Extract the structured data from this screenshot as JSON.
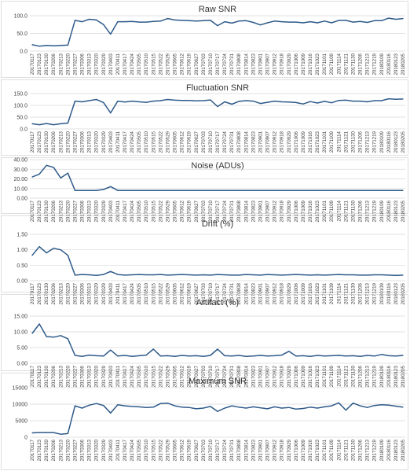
{
  "page": {
    "line_color": "#2e5a8a"
  },
  "chart_data": [
    {
      "type": "line",
      "title": "Raw SNR",
      "ylim": [
        0,
        100
      ],
      "yticks": [
        "0.0",
        "50.0",
        "100.0"
      ],
      "grid": true,
      "x": [
        "20170117",
        "20170123",
        "20170130",
        "20170206",
        "20170213",
        "20170220",
        "20170227",
        "20170306",
        "20170313",
        "20170320",
        "20170329",
        "20170403",
        "20170411",
        "20170417",
        "20170424",
        "20170505",
        "20170510",
        "20170515",
        "20170522",
        "20170529",
        "20170605",
        "20170612",
        "20170619",
        "20170627",
        "20170703",
        "20170710",
        "20170717",
        "20170724",
        "20170731",
        "20170808",
        "20170814",
        "20170823",
        "20170901",
        "20170907",
        "20170912",
        "20170918",
        "20170929",
        "20171006",
        "20171009",
        "20171016",
        "20171023",
        "20171101",
        "20171109",
        "20171114",
        "20171121",
        "20171130",
        "20171206",
        "20171213",
        "20171219",
        "20180109",
        "20180116",
        "20180123",
        "20180205"
      ],
      "values": [
        18,
        14,
        16,
        15,
        16,
        17,
        87,
        83,
        90,
        88,
        75,
        48,
        83,
        83,
        84,
        82,
        82,
        84,
        85,
        92,
        88,
        87,
        86,
        85,
        86,
        87,
        72,
        83,
        79,
        85,
        86,
        81,
        74,
        80,
        85,
        83,
        82,
        82,
        80,
        83,
        80,
        85,
        80,
        87,
        87,
        82,
        84,
        81,
        86,
        86,
        93,
        90,
        92
      ]
    },
    {
      "type": "line",
      "title": "Fluctuation SNR",
      "ylim": [
        0,
        150
      ],
      "yticks": [
        "0.0",
        "50.0",
        "100.0",
        "150.0"
      ],
      "grid": true,
      "x": [
        "20170117",
        "20170123",
        "20170130",
        "20170206",
        "20170213",
        "20170220",
        "20170227",
        "20170306",
        "20170313",
        "20170320",
        "20170329",
        "20170403",
        "20170411",
        "20170417",
        "20170424",
        "20170505",
        "20170510",
        "20170515",
        "20170522",
        "20170529",
        "20170605",
        "20170612",
        "20170619",
        "20170627",
        "20170703",
        "20170710",
        "20170717",
        "20170724",
        "20170731",
        "20170808",
        "20170814",
        "20170823",
        "20170901",
        "20170907",
        "20170912",
        "20170918",
        "20170929",
        "20171006",
        "20171009",
        "20171016",
        "20171023",
        "20171101",
        "20171109",
        "20171114",
        "20171121",
        "20171130",
        "20171206",
        "20171213",
        "20171219",
        "20180109",
        "20180116",
        "20180123",
        "20180205"
      ],
      "values": [
        22,
        18,
        23,
        18,
        22,
        25,
        118,
        115,
        120,
        125,
        112,
        68,
        118,
        114,
        118,
        115,
        113,
        118,
        120,
        125,
        122,
        121,
        121,
        119,
        120,
        123,
        95,
        115,
        105,
        117,
        120,
        118,
        108,
        113,
        118,
        115,
        114,
        112,
        106,
        116,
        110,
        117,
        111,
        121,
        122,
        118,
        118,
        115,
        120,
        120,
        128,
        126,
        127
      ]
    },
    {
      "type": "line",
      "title": "Noise (ADUs)",
      "ylim": [
        0,
        40
      ],
      "yticks": [
        "0.00",
        "10.00",
        "20.00",
        "30.00",
        "40.00"
      ],
      "grid": true,
      "x": [
        "20170117",
        "20170123",
        "20170130",
        "20170206",
        "20170213",
        "20170220",
        "20170227",
        "20170306",
        "20170313",
        "20170320",
        "20170329",
        "20170403",
        "20170411",
        "20170417",
        "20170424",
        "20170505",
        "20170510",
        "20170515",
        "20170522",
        "20170529",
        "20170605",
        "20170612",
        "20170619",
        "20170627",
        "20170703",
        "20170710",
        "20170717",
        "20170724",
        "20170731",
        "20170808",
        "20170814",
        "20170823",
        "20170901",
        "20170907",
        "20170912",
        "20170918",
        "20170929",
        "20171006",
        "20171009",
        "20171016",
        "20171023",
        "20171101",
        "20171109",
        "20171114",
        "20171121",
        "20171130",
        "20171206",
        "20171213",
        "20171219",
        "20180109",
        "20180116",
        "20180123",
        "20180205"
      ],
      "values": [
        22,
        25,
        34,
        32,
        21,
        26,
        8,
        8,
        8,
        8,
        9,
        12,
        8,
        8,
        8,
        8,
        8,
        8,
        8,
        8,
        8,
        8,
        8,
        8,
        8,
        8,
        8,
        8,
        8,
        8,
        8,
        8,
        8,
        8,
        8,
        8,
        8,
        8,
        8,
        8,
        8,
        8,
        8,
        8,
        8,
        8,
        8,
        8,
        8,
        8,
        8,
        8,
        8
      ]
    },
    {
      "type": "line",
      "title": "Drift (%)",
      "ylim": [
        0,
        1.5
      ],
      "yticks": [
        "0.00",
        "0.50",
        "1.00",
        "1.50"
      ],
      "grid": true,
      "x": [
        "20170117",
        "20170123",
        "20170130",
        "20170206",
        "20170213",
        "20170220",
        "20170227",
        "20170306",
        "20170313",
        "20170320",
        "20170329",
        "20170403",
        "20170411",
        "20170417",
        "20170424",
        "20170505",
        "20170510",
        "20170515",
        "20170522",
        "20170529",
        "20170605",
        "20170612",
        "20170619",
        "20170627",
        "20170703",
        "20170710",
        "20170717",
        "20170724",
        "20170731",
        "20170808",
        "20170814",
        "20170823",
        "20170901",
        "20170907",
        "20170912",
        "20170918",
        "20170929",
        "20171006",
        "20171009",
        "20171016",
        "20171023",
        "20171101",
        "20171109",
        "20171114",
        "20171121",
        "20171130",
        "20171206",
        "20171213",
        "20171219",
        "20180109",
        "20180116",
        "20180123",
        "20180205"
      ],
      "values": [
        0.82,
        1.1,
        0.9,
        1.05,
        1.0,
        0.82,
        0.18,
        0.2,
        0.19,
        0.17,
        0.2,
        0.3,
        0.2,
        0.18,
        0.19,
        0.2,
        0.19,
        0.19,
        0.2,
        0.18,
        0.19,
        0.2,
        0.19,
        0.18,
        0.19,
        0.18,
        0.2,
        0.19,
        0.18,
        0.18,
        0.2,
        0.19,
        0.18,
        0.2,
        0.19,
        0.18,
        0.19,
        0.2,
        0.19,
        0.18,
        0.19,
        0.18,
        0.19,
        0.2,
        0.19,
        0.19,
        0.18,
        0.18,
        0.19,
        0.19,
        0.18,
        0.17,
        0.18
      ]
    },
    {
      "type": "line",
      "title": "Artifact (%)",
      "ylim": [
        0,
        15
      ],
      "yticks": [
        "0.00",
        "5.00",
        "10.00",
        "15.00"
      ],
      "grid": true,
      "x": [
        "20170117",
        "20170123",
        "20170130",
        "20170206",
        "20170213",
        "20170220",
        "20170227",
        "20170306",
        "20170313",
        "20170320",
        "20170329",
        "20170403",
        "20170411",
        "20170417",
        "20170424",
        "20170505",
        "20170510",
        "20170515",
        "20170522",
        "20170529",
        "20170605",
        "20170612",
        "20170619",
        "20170627",
        "20170703",
        "20170710",
        "20170717",
        "20170724",
        "20170731",
        "20170808",
        "20170814",
        "20170823",
        "20170901",
        "20170907",
        "20170912",
        "20170918",
        "20170929",
        "20171006",
        "20171009",
        "20171016",
        "20171023",
        "20171101",
        "20171109",
        "20171114",
        "20171121",
        "20171130",
        "20171206",
        "20171213",
        "20171219",
        "20180109",
        "20180116",
        "20180123",
        "20180205"
      ],
      "values": [
        9.5,
        12.5,
        8.5,
        8.3,
        8.8,
        7.8,
        2.5,
        2.2,
        2.6,
        2.4,
        2.3,
        4.2,
        2.3,
        2.5,
        2.2,
        2.4,
        2.6,
        4.5,
        2.3,
        2.4,
        2.2,
        2.5,
        2.3,
        2.4,
        2.2,
        2.5,
        4.5,
        2.4,
        2.3,
        2.5,
        2.2,
        2.3,
        2.5,
        2.3,
        2.4,
        2.6,
        3.8,
        2.3,
        2.4,
        2.2,
        2.5,
        2.3,
        2.4,
        2.5,
        2.3,
        2.4,
        2.2,
        2.5,
        2.3,
        2.8,
        2.4,
        2.3,
        2.5
      ]
    },
    {
      "type": "line",
      "title": "Maximum SNR",
      "ylim": [
        0,
        15000
      ],
      "yticks": [
        "0",
        "5000",
        "10000",
        "15000"
      ],
      "grid": true,
      "x": [
        "20170117",
        "20170123",
        "20170130",
        "20170206",
        "20170213",
        "20170220",
        "20170227",
        "20170306",
        "20170313",
        "20170320",
        "20170329",
        "20170403",
        "20170411",
        "20170417",
        "20170424",
        "20170505",
        "20170510",
        "20170515",
        "20170522",
        "20170529",
        "20170605",
        "20170612",
        "20170619",
        "20170627",
        "20170703",
        "20170710",
        "20170717",
        "20170724",
        "20170731",
        "20170808",
        "20170814",
        "20170823",
        "20170901",
        "20170907",
        "20170912",
        "20170918",
        "20170929",
        "20171006",
        "20171009",
        "20171016",
        "20171023",
        "20171101",
        "20171109",
        "20171114",
        "20171121",
        "20171130",
        "20171206",
        "20171213",
        "20171219",
        "20180109",
        "20180116",
        "20180123",
        "20180205"
      ],
      "values": [
        1300,
        1400,
        1400,
        1400,
        900,
        1100,
        9500,
        8800,
        9700,
        10200,
        9600,
        7300,
        9800,
        9500,
        9300,
        9200,
        9000,
        9100,
        10200,
        10300,
        9500,
        9100,
        9000,
        8600,
        8800,
        9300,
        7800,
        8800,
        9500,
        9100,
        8800,
        9200,
        8900,
        8600,
        9200,
        8800,
        9000,
        8500,
        8700,
        9100,
        8800,
        9200,
        9500,
        10400,
        8200,
        10300,
        9500,
        9000,
        9600,
        9800,
        9700,
        9400,
        9100
      ]
    }
  ]
}
